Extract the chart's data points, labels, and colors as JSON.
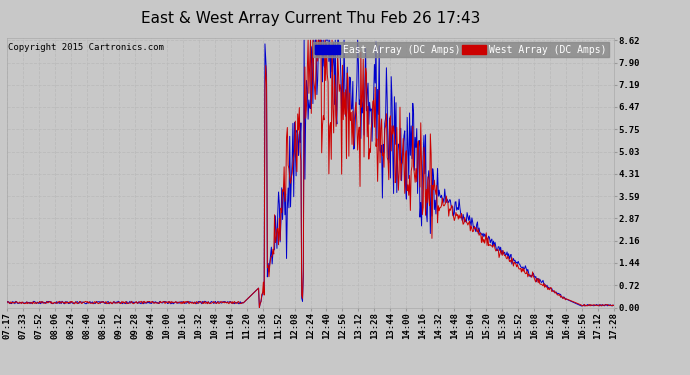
{
  "title": "East & West Array Current Thu Feb 26 17:43",
  "copyright": "Copyright 2015 Cartronics.com",
  "legend_east": "East Array (DC Amps)",
  "legend_west": "West Array (DC Amps)",
  "east_color": "#0000cc",
  "west_color": "#cc0000",
  "background_color": "#c8c8c8",
  "grid_color": "#aaaaaa",
  "yticks": [
    0.0,
    0.72,
    1.44,
    2.16,
    2.87,
    3.59,
    4.31,
    5.03,
    5.75,
    6.47,
    7.19,
    7.9,
    8.62
  ],
  "ymax": 8.62,
  "ymin": 0.0,
  "xtick_labels": [
    "07:17",
    "07:33",
    "07:52",
    "08:06",
    "08:24",
    "08:40",
    "08:56",
    "09:12",
    "09:28",
    "09:44",
    "10:00",
    "10:16",
    "10:32",
    "10:48",
    "11:04",
    "11:20",
    "11:36",
    "11:52",
    "12:08",
    "12:24",
    "12:40",
    "12:56",
    "13:12",
    "13:28",
    "13:44",
    "14:00",
    "14:16",
    "14:32",
    "14:48",
    "15:04",
    "15:20",
    "15:36",
    "15:52",
    "16:08",
    "16:24",
    "16:40",
    "16:56",
    "17:12",
    "17:28"
  ],
  "title_fontsize": 11,
  "tick_fontsize": 6.5,
  "copyright_fontsize": 6.5,
  "legend_fontsize": 7
}
